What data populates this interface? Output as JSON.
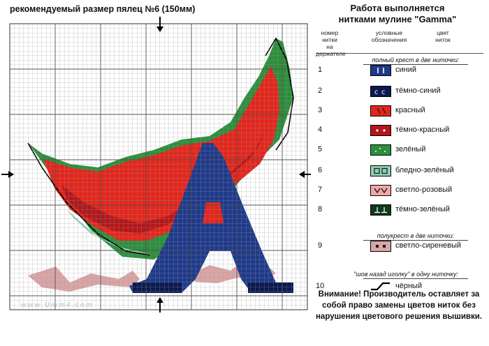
{
  "page": {
    "title": "рекомендуемый размер пялец №6 (150мм)",
    "watermark": "www.Umm4.com"
  },
  "legend": {
    "heading_line1": "Работа выполняется",
    "heading_line2": "нитками мулине \"Gamma\"",
    "col_number": [
      "номер",
      "нитки",
      "на держателе"
    ],
    "col_symbol": [
      "условные",
      "обозначения"
    ],
    "col_color": [
      "цвет",
      "ниток"
    ],
    "section_full_cross": "полный крест в две ниточки:",
    "section_half_cross": "полукрест в две ниточки:",
    "section_backstitch": "\"шов назад иголку\" в одну ниточку:",
    "items": [
      {
        "num": "1",
        "name": "синий",
        "fill": "#1f3a8a",
        "icon": "bars-icon",
        "fg": "#ffffff"
      },
      {
        "num": "2",
        "name": "тёмно-синий",
        "fill": "#0b1a4f",
        "icon": "crescent-icon",
        "fg": "#ffffff"
      },
      {
        "num": "3",
        "name": "красный",
        "fill": "#e3261c",
        "icon": "slash-icon",
        "fg": "#1a1a1a"
      },
      {
        "num": "4",
        "name": "тёмно-красный",
        "fill": "#b3171a",
        "icon": "dots-icon",
        "fg": "#ffffff"
      },
      {
        "num": "5",
        "name": "зелёный",
        "fill": "#2d8f3c",
        "icon": "sparkle-icon",
        "fg": "#ffffff"
      },
      {
        "num": "6",
        "name": "бледно-зелёный",
        "fill": "#8fceb4",
        "icon": "square-icon",
        "fg": "#1a1a1a"
      },
      {
        "num": "7",
        "name": "светло-розовый",
        "fill": "#f0a8a4",
        "icon": "v-icon",
        "fg": "#1a1a1a"
      },
      {
        "num": "8",
        "name": "тёмно-зелёный",
        "fill": "#0d3b1c",
        "icon": "tee-icon",
        "fg": "#ffffff"
      },
      {
        "num": "9",
        "name": "светло-сиреневый",
        "fill": "#d9a5a6",
        "icon": "dot-square-icon",
        "fg": "#1a1a1a"
      },
      {
        "num": "10",
        "name": "чёрный",
        "fill": "#000000",
        "icon": "backstitch-icon",
        "fg": "#000000"
      }
    ],
    "note_line1": "Внимание! Производитель оставляет за",
    "note_line2": "собой право замены цветов ниток без",
    "note_line3": "нарушения цветового решения вышивки."
  }
}
